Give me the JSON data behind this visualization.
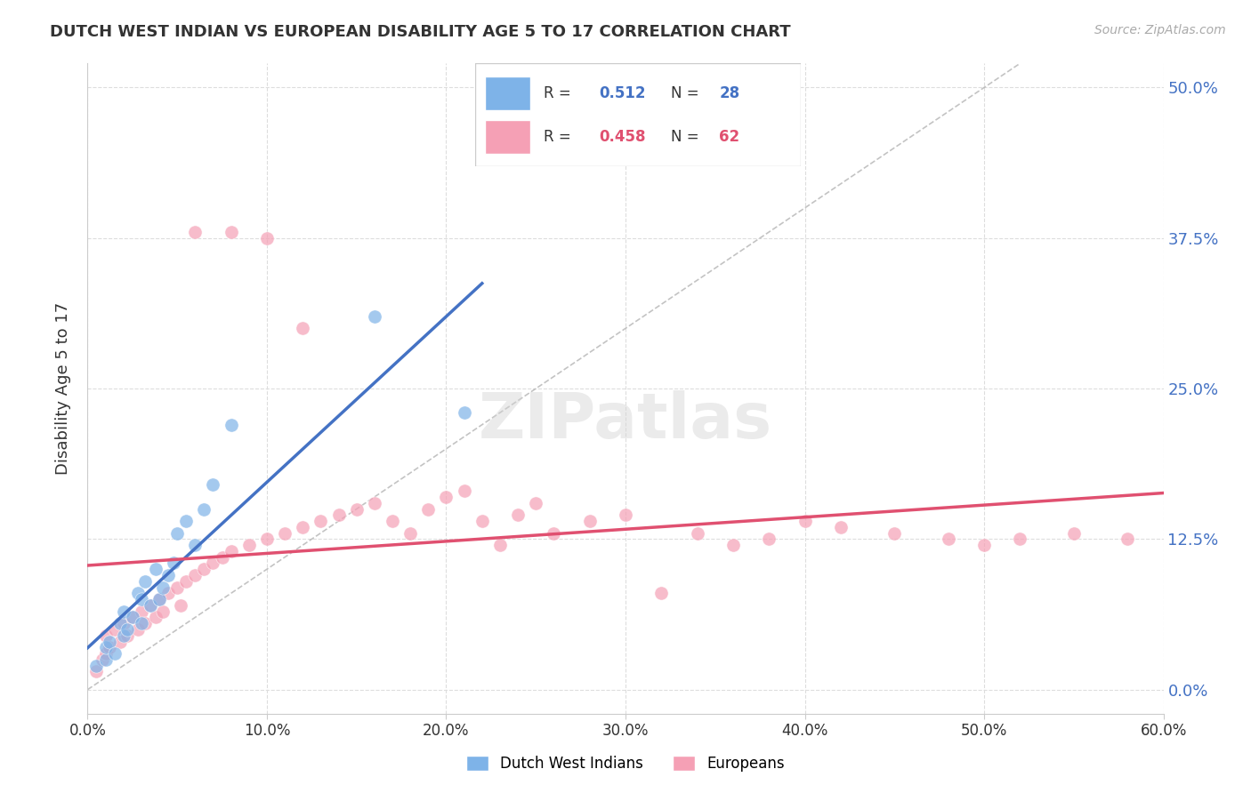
{
  "title": "DUTCH WEST INDIAN VS EUROPEAN DISABILITY AGE 5 TO 17 CORRELATION CHART",
  "source": "Source: ZipAtlas.com",
  "ylabel": "Disability Age 5 to 17",
  "xlabel_ticks": [
    "0.0%",
    "10.0%",
    "20.0%",
    "30.0%",
    "40.0%",
    "50.0%",
    "60.0%"
  ],
  "xlabel_vals": [
    0.0,
    0.1,
    0.2,
    0.3,
    0.4,
    0.5,
    0.6
  ],
  "ylabel_ticks": [
    "0.0%",
    "12.5%",
    "25.0%",
    "37.5%",
    "50.0%"
  ],
  "ylabel_vals": [
    0.0,
    0.125,
    0.25,
    0.375,
    0.5
  ],
  "xlim": [
    0.0,
    0.6
  ],
  "ylim": [
    -0.02,
    0.52
  ],
  "background_color": "#ffffff",
  "grid_color": "#dddddd",
  "watermark": "ZIPatlas",
  "legend_blue_R": "0.512",
  "legend_blue_N": "28",
  "legend_pink_R": "0.458",
  "legend_pink_N": "62",
  "blue_color": "#7eb3e8",
  "pink_color": "#f5a0b5",
  "blue_line_color": "#4472c4",
  "pink_line_color": "#e05070",
  "dashed_line_color": "#aaaaaa"
}
